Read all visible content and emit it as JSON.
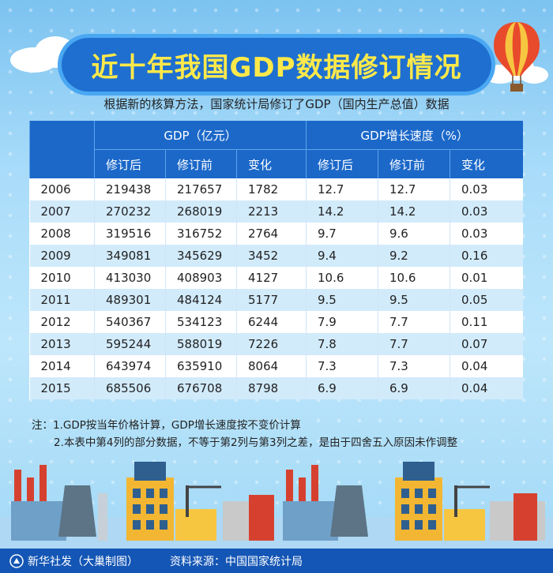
{
  "title": "近十年我国GDP数据修订情况",
  "subtitle": "根据新的核算方法，国家统计局修订了GDP（国内生产总值）数据",
  "table": {
    "group_headers": [
      "GDP（亿元）",
      "GDP增长速度（%）"
    ],
    "sub_headers": [
      "修订后",
      "修订前",
      "变化",
      "修订后",
      "修订前",
      "变化"
    ],
    "rows": [
      [
        "2006",
        "219438",
        "217657",
        "1782",
        "12.7",
        "12.7",
        "0.03"
      ],
      [
        "2007",
        "270232",
        "268019",
        "2213",
        "14.2",
        "14.2",
        "0.03"
      ],
      [
        "2008",
        "319516",
        "316752",
        "2764",
        "9.7",
        "9.6",
        "0.03"
      ],
      [
        "2009",
        "349081",
        "345629",
        "3452",
        "9.4",
        "9.2",
        "0.16"
      ],
      [
        "2010",
        "413030",
        "408903",
        "4127",
        "10.6",
        "10.6",
        "0.01"
      ],
      [
        "2011",
        "489301",
        "484124",
        "5177",
        "9.5",
        "9.5",
        "0.05"
      ],
      [
        "2012",
        "540367",
        "534123",
        "6244",
        "7.9",
        "7.7",
        "0.11"
      ],
      [
        "2013",
        "595244",
        "588019",
        "7226",
        "7.8",
        "7.7",
        "0.07"
      ],
      [
        "2014",
        "643974",
        "635910",
        "8064",
        "7.3",
        "7.3",
        "0.04"
      ],
      [
        "2015",
        "685506",
        "676708",
        "8798",
        "6.9",
        "6.9",
        "0.04"
      ]
    ]
  },
  "notes": [
    "注：1.GDP按当年价格计算，GDP增长速度按不变价计算",
    "2.本表中第4列的部分数据，不等于第2列与第3列之差，是由于四舍五入原因未作调整"
  ],
  "footer": {
    "credit": "新华社发（大巢制图）",
    "source": "资料来源：中国国家统计局"
  },
  "colors": {
    "header_blue": "#1b68c9",
    "stripe_blue": "#d2ebfb",
    "title_yellow": "#ffe94a",
    "footer_blue": "#1456b5"
  }
}
